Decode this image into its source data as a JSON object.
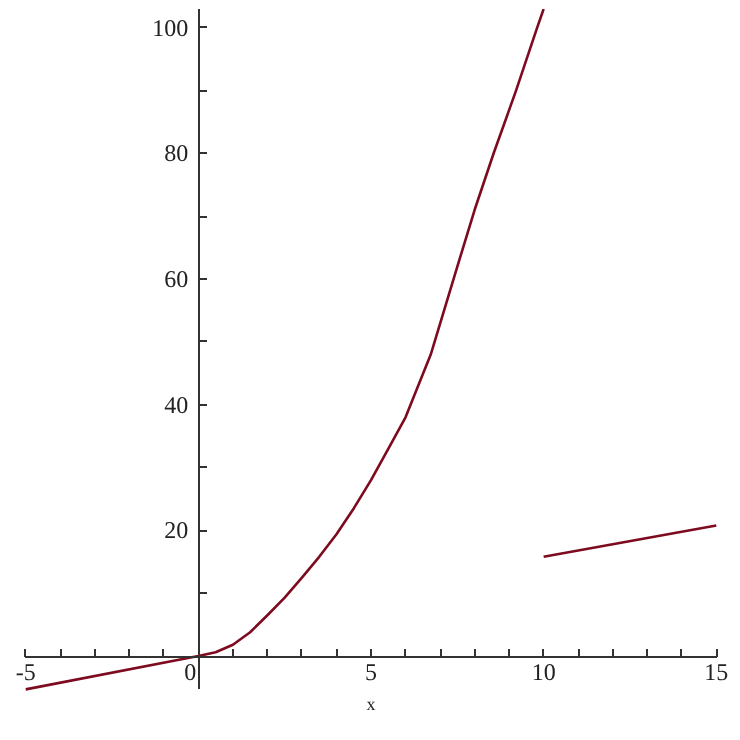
{
  "chart_data": {
    "type": "line",
    "xlabel": "x",
    "series": [
      {
        "color": "#7d0a1f",
        "x": [
          -5,
          0,
          0.5,
          1,
          1.5,
          2,
          2.5,
          3,
          3.5,
          4,
          4.5,
          5,
          5.5,
          6,
          6.73,
          7.5,
          8,
          8.55,
          9.2,
          9.81,
          10
        ],
        "values": [
          -5.3,
          0,
          0.6,
          1.8,
          3.8,
          6.5,
          9.3,
          12.5,
          15.8,
          19.4,
          23.5,
          28,
          33,
          38,
          48,
          62,
          71,
          80,
          90,
          100,
          103
        ]
      },
      {
        "color": "#7d0a1f",
        "x": [
          10,
          15
        ],
        "values": [
          15.8,
          20.8
        ]
      }
    ],
    "xlim": [
      -5,
      15
    ],
    "ylim": [
      -5.3,
      103
    ],
    "xticks": [
      -5,
      {
        "value": -4,
        "label": null
      },
      {
        "value": -3,
        "label": null
      },
      {
        "value": -2,
        "label": null
      },
      {
        "value": -1,
        "label": null
      },
      0,
      {
        "value": 1,
        "label": null
      },
      {
        "value": 2,
        "label": null
      },
      {
        "value": 3,
        "label": null
      },
      {
        "value": 4,
        "label": null
      },
      5,
      {
        "value": 6,
        "label": null
      },
      {
        "value": 7,
        "label": null
      },
      {
        "value": 8,
        "label": null
      },
      {
        "value": 9,
        "label": null
      },
      10,
      {
        "value": 11,
        "label": null
      },
      {
        "value": 12,
        "label": null
      },
      {
        "value": 13,
        "label": null
      },
      {
        "value": 14,
        "label": null
      },
      15
    ],
    "yticks": [
      {
        "value": 10,
        "label": null
      },
      20,
      {
        "value": 30,
        "label": null
      },
      40,
      {
        "value": 50,
        "label": null
      },
      60,
      {
        "value": 70,
        "label": null
      },
      80,
      {
        "value": 90,
        "label": null
      },
      100
    ],
    "grid": false,
    "marker": "none",
    "line_style": "solid"
  }
}
